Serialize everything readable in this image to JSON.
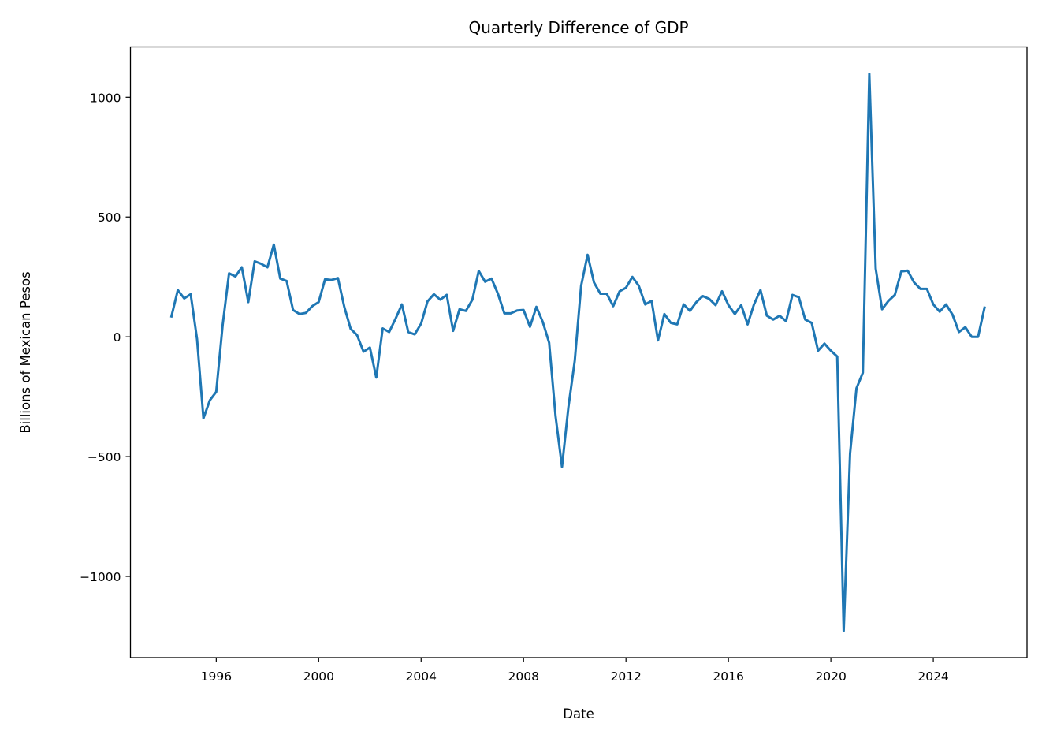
{
  "chart_data": {
    "type": "line",
    "title": "Quarterly Difference of GDP",
    "xlabel": "Date",
    "ylabel": "Billions of Mexican Pesos",
    "xlim": [
      1992.65,
      2027.66
    ],
    "ylim": [
      -1339,
      1210
    ],
    "x_ticks": [
      1996,
      2000,
      2004,
      2008,
      2012,
      2016,
      2020,
      2024
    ],
    "x_tick_labels": [
      "1996",
      "2000",
      "2004",
      "2008",
      "2012",
      "2016",
      "2020",
      "2024"
    ],
    "y_ticks": [
      -1000,
      -500,
      0,
      500,
      1000
    ],
    "y_tick_labels": [
      "−1000",
      "−500",
      "0",
      "500",
      "1000"
    ],
    "grid": false,
    "color": "#1f77b4",
    "series": [
      {
        "name": "Quarterly Difference of GDP",
        "x_start": 1994.25,
        "x_step": 0.25,
        "values": [
          85,
          195,
          160,
          178,
          -10,
          -340,
          -265,
          -230,
          50,
          265,
          252,
          290,
          145,
          315,
          305,
          290,
          385,
          243,
          233,
          112,
          95,
          100,
          128,
          145,
          240,
          237,
          245,
          125,
          33,
          7,
          -62,
          -45,
          -170,
          35,
          20,
          75,
          135,
          20,
          10,
          55,
          148,
          178,
          155,
          175,
          25,
          115,
          108,
          155,
          275,
          230,
          243,
          180,
          98,
          98,
          110,
          112,
          42,
          125,
          62,
          -25,
          -330,
          -543,
          -295,
          -100,
          213,
          342,
          227,
          180,
          180,
          128,
          190,
          205,
          250,
          213,
          135,
          150,
          -15,
          95,
          58,
          52,
          135,
          108,
          145,
          170,
          158,
          132,
          190,
          132,
          95,
          132,
          52,
          135,
          195,
          88,
          72,
          88,
          65,
          175,
          165,
          72,
          58,
          -58,
          -28,
          -58,
          -82,
          -1227,
          -487,
          -215,
          -150,
          1098,
          285,
          115,
          150,
          175,
          273,
          276,
          227,
          200,
          200,
          135,
          105,
          135,
          92,
          20,
          40,
          0,
          0,
          122
        ]
      }
    ]
  }
}
